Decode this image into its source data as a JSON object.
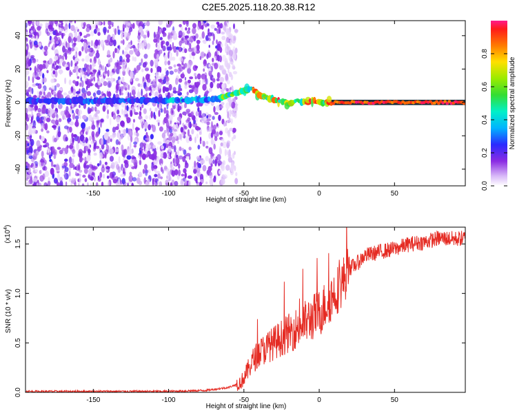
{
  "title": "C2E5.2025.118.20.38.R12",
  "chart_data": [
    {
      "type": "heatmap",
      "xlabel": "Height of straight line (km)",
      "ylabel": "Frequency (Hz)",
      "xlim": [
        -195,
        97
      ],
      "ylim": [
        -50,
        49
      ],
      "x_ticks": [
        -150,
        -100,
        -50,
        0,
        50
      ],
      "y_ticks": [
        -40,
        -20,
        0,
        20,
        40
      ],
      "colorbar": {
        "label": "Normalized spectral amplitude",
        "range": [
          0,
          1
        ],
        "ticks": [
          "0.0",
          "0.2",
          "0.4",
          "0.6",
          "0.8"
        ]
      },
      "ridge": {
        "x": [
          -195,
          -150,
          -100,
          -70,
          -60,
          -55,
          -50,
          -45,
          -40,
          -35,
          -30,
          -25,
          -20,
          -15,
          -10,
          -5,
          0,
          5,
          8,
          10,
          50,
          97
        ],
        "y": [
          1,
          1,
          1,
          2,
          4,
          6,
          7,
          9,
          5,
          3,
          2,
          1,
          -1,
          1,
          0,
          1,
          0,
          0,
          -1,
          0,
          0,
          0
        ]
      },
      "noise_region_x": [
        -195,
        -65
      ],
      "colors": {
        "low": "#8a2be2",
        "high": "#ff1744"
      }
    },
    {
      "type": "line",
      "xlabel": "Height of straight line (km)",
      "ylabel": "SNR (10 * v/v)",
      "y_multiplier": "(x10",
      "y_multiplier_exp": "4",
      "y_multiplier_close": ")",
      "xlim": [
        -195,
        97
      ],
      "ylim": [
        0,
        1.67
      ],
      "x_ticks": [
        -150,
        -100,
        -50,
        0,
        50
      ],
      "y_ticks": [
        "0.0",
        "0.5",
        "1.0",
        "1.5"
      ],
      "series": [
        {
          "x": [
            -195,
            -100,
            -75,
            -60,
            -52,
            -48,
            -45,
            -40,
            -35,
            -30,
            -25,
            -20,
            -15,
            -10,
            -5,
            0,
            5,
            10,
            15,
            18,
            20,
            25,
            30,
            40,
            50,
            60,
            70,
            80,
            90,
            97
          ],
          "mean": [
            0.01,
            0.01,
            0.02,
            0.05,
            0.1,
            0.2,
            0.3,
            0.4,
            0.45,
            0.5,
            0.55,
            0.6,
            0.65,
            0.7,
            0.75,
            0.8,
            0.9,
            1.0,
            1.1,
            1.2,
            1.25,
            1.3,
            1.38,
            1.42,
            1.45,
            1.5,
            1.52,
            1.56,
            1.55,
            1.56
          ],
          "color": "#e52b23"
        }
      ]
    }
  ]
}
